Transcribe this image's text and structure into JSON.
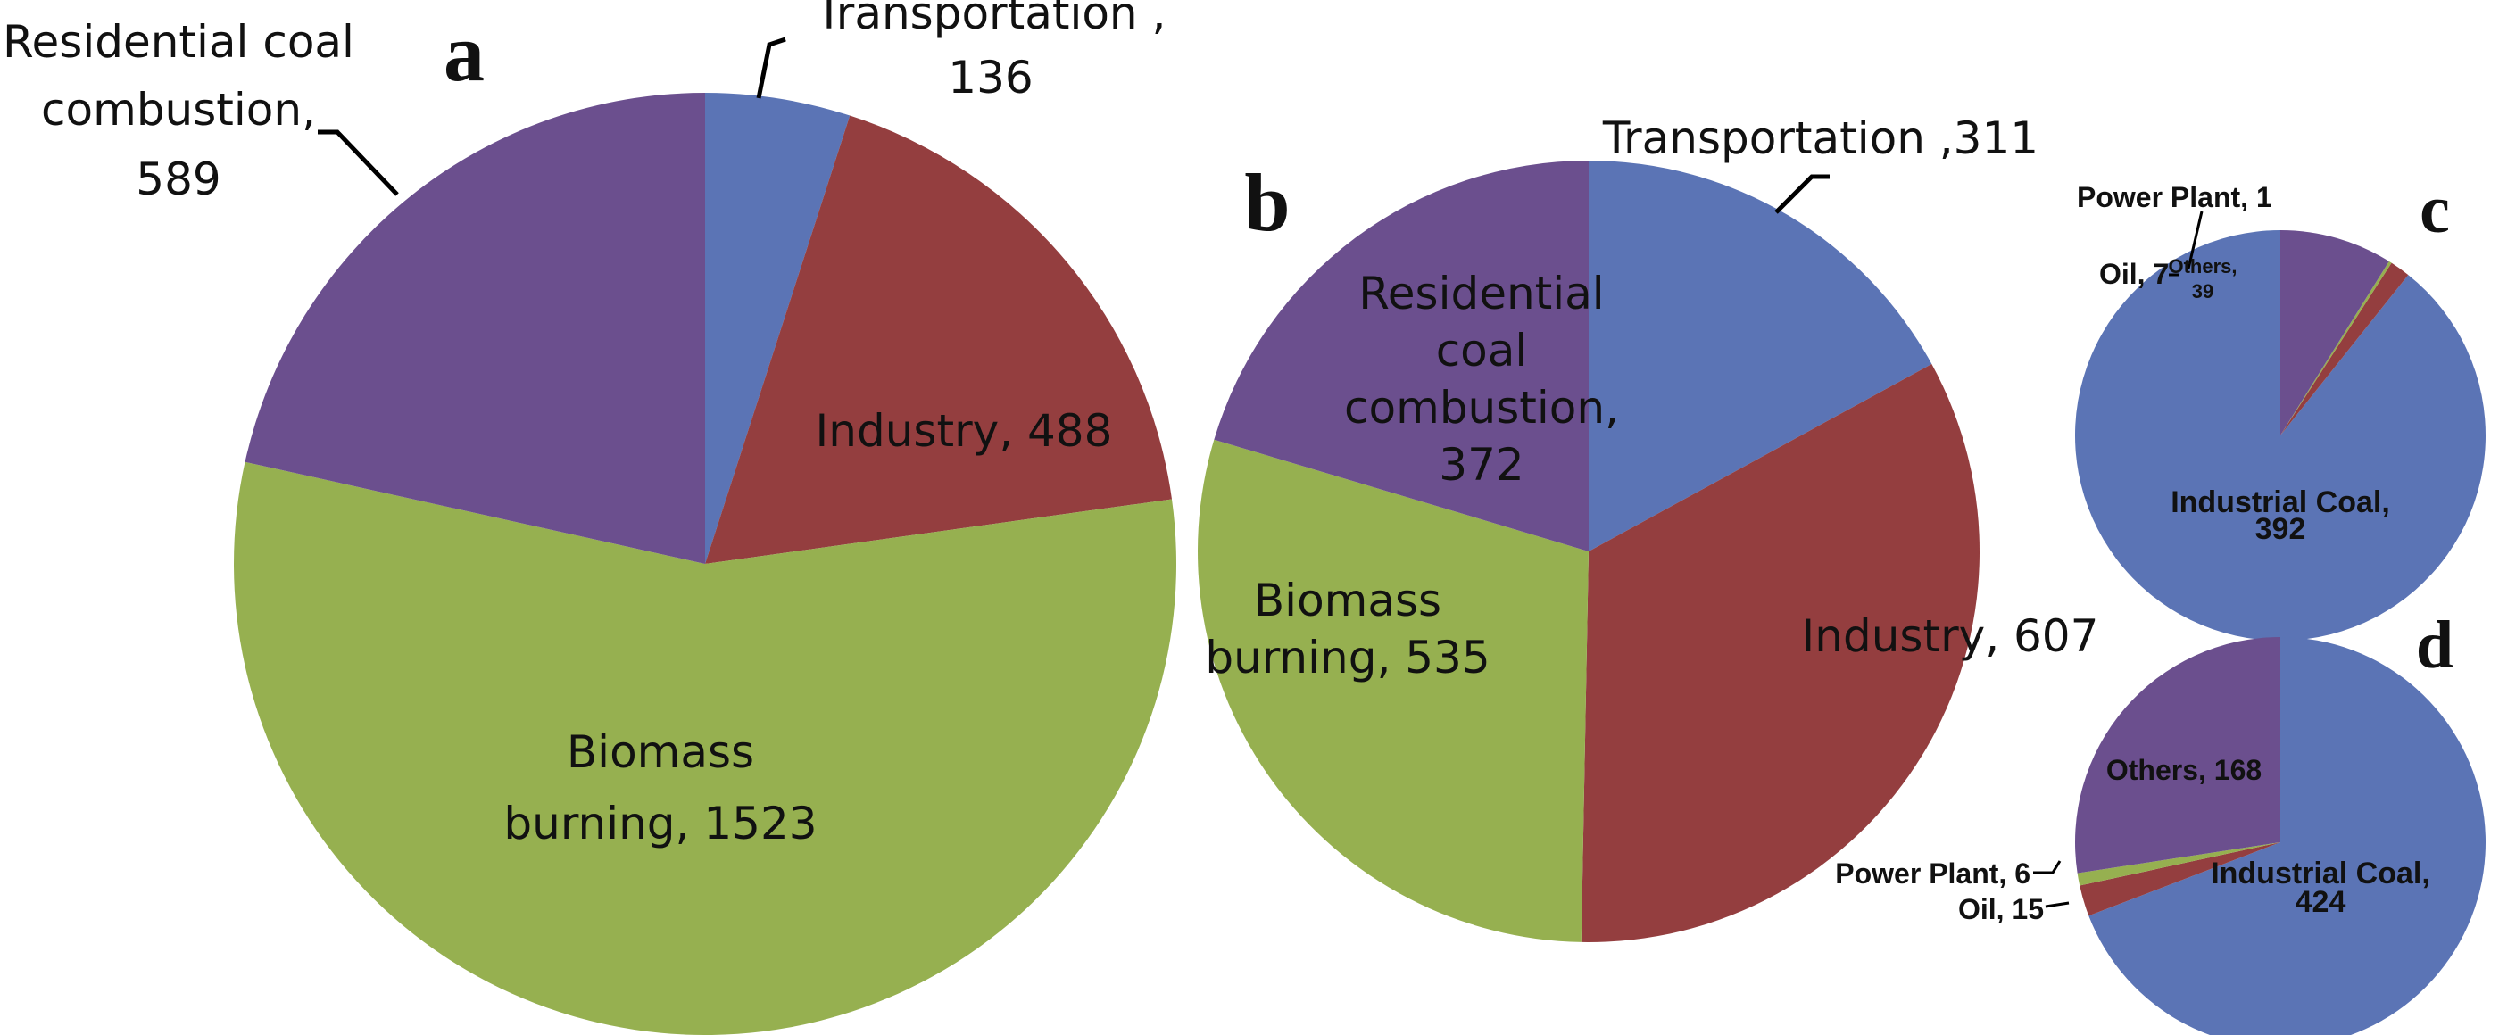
{
  "colors": {
    "blue": "#5b74b5",
    "red": "#943e3f",
    "green": "#96b050",
    "purple": "#6b4f8e"
  },
  "chart_data": [
    {
      "type": "pie",
      "panel": "a",
      "slices": [
        {
          "label": "Transportation ,",
          "value": 136,
          "value_text": "136",
          "color": "blue"
        },
        {
          "label": "Industry, 488",
          "value": 488,
          "color": "red"
        },
        {
          "label_lines": [
            "Biomass",
            "burning, 1523"
          ],
          "value": 1523,
          "color": "green"
        },
        {
          "label_lines": [
            "Residential coal",
            "combustion,",
            "589"
          ],
          "value": 589,
          "color": "purple"
        }
      ]
    },
    {
      "type": "pie",
      "panel": "b",
      "slices": [
        {
          "label": "Transportation ,311",
          "value": 311,
          "color": "blue"
        },
        {
          "label": "Industry, 607",
          "value": 607,
          "color": "red"
        },
        {
          "label_lines": [
            "Biomass",
            "burning, 535"
          ],
          "value": 535,
          "color": "green"
        },
        {
          "label_lines": [
            "Residential",
            "coal",
            "combustion,",
            "372"
          ],
          "value": 372,
          "color": "purple"
        }
      ]
    },
    {
      "type": "pie",
      "panel": "c",
      "slices": [
        {
          "label_lines": [
            "Industrial Coal,",
            "392"
          ],
          "value": 392,
          "color": "blue"
        },
        {
          "label": "Oil, 7",
          "value": 7,
          "color": "red"
        },
        {
          "label": "Power Plant, 1",
          "value": 1,
          "color": "green"
        },
        {
          "label_lines": [
            "Others,",
            "39"
          ],
          "value": 39,
          "color": "purple"
        }
      ]
    },
    {
      "type": "pie",
      "panel": "d",
      "slices": [
        {
          "label_lines": [
            "Industrial Coal,",
            "424"
          ],
          "value": 424,
          "color": "blue"
        },
        {
          "label": "Oil, 15",
          "value": 15,
          "color": "red"
        },
        {
          "label": "Power Plant, 6",
          "value": 6,
          "color": "green"
        },
        {
          "label": "Others, 168",
          "value": 168,
          "color": "purple"
        }
      ]
    }
  ]
}
